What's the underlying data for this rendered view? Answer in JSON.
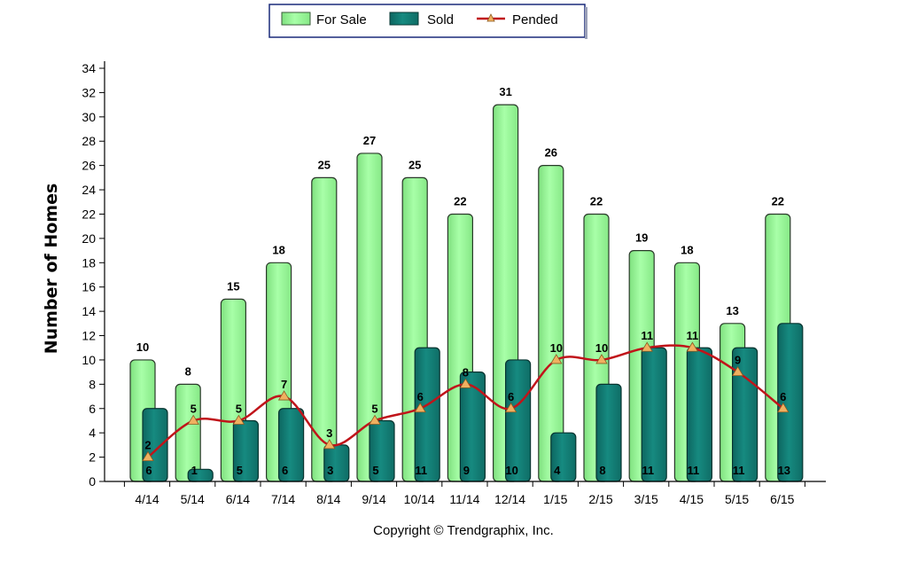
{
  "chart_data": {
    "type": "bar",
    "ylabel": "Number of Homes",
    "xlabel": "",
    "ylim": [
      0,
      34
    ],
    "ytick_step": 2,
    "categories": [
      "4/14",
      "5/14",
      "6/14",
      "7/14",
      "8/14",
      "9/14",
      "10/14",
      "11/14",
      "12/14",
      "1/15",
      "2/15",
      "3/15",
      "4/15",
      "5/15",
      "6/15"
    ],
    "series": [
      {
        "name": "For Sale",
        "kind": "bar",
        "color": "#99f999",
        "values": [
          10,
          8,
          15,
          18,
          25,
          27,
          25,
          22,
          31,
          26,
          22,
          19,
          18,
          13,
          22
        ]
      },
      {
        "name": "Sold",
        "kind": "bar",
        "color": "#117a72",
        "values": [
          6,
          1,
          5,
          6,
          3,
          5,
          11,
          9,
          10,
          4,
          8,
          11,
          11,
          11,
          13
        ]
      },
      {
        "name": "Pended",
        "kind": "line",
        "color": "#c0141a",
        "marker_color": "#f0b060",
        "values": [
          2,
          5,
          5,
          7,
          3,
          5,
          6,
          8,
          6,
          10,
          10,
          11,
          11,
          9,
          6
        ]
      }
    ],
    "legend_position": "top-center",
    "grid": false
  },
  "footer": {
    "copyright": "Copyright © Trendgraphix, Inc."
  }
}
